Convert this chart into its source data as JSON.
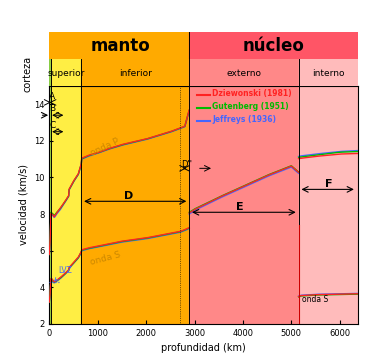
{
  "title_manto": "manto",
  "title_nucleo": "núcleo",
  "label_corteza": "corteza",
  "label_superior": "superior",
  "label_inferior": "inferior",
  "label_externo": "externo",
  "label_interno": "interno",
  "xlabel": "profundidad (km)",
  "ylabel": "velocidad (km/s)",
  "xlim": [
    0,
    6371
  ],
  "ylim": [
    2,
    15
  ],
  "bg_corteza": "#88cc44",
  "bg_manto_superior": "#ffee44",
  "bg_manto_inferior": "#ffaa00",
  "bg_nucleo_externo": "#ff8888",
  "bg_nucleo_interno": "#ffbbbb",
  "header_manto_color": "#ffaa00",
  "header_nucleo_color": "#ff5566",
  "color_dz": "#ff2222",
  "color_gut": "#00bb00",
  "color_jeff": "#4466ff",
  "boundaries": {
    "corteza_end": 35,
    "manto_superior_end": 660,
    "manto_inferior_end": 2890,
    "nucleo_externo_end": 5150,
    "nucleo_interno_end": 6371
  },
  "xticks": [
    0,
    1000,
    2000,
    3000,
    4000,
    5000,
    6000
  ],
  "yticks": [
    2,
    4,
    6,
    8,
    10,
    12,
    14
  ]
}
